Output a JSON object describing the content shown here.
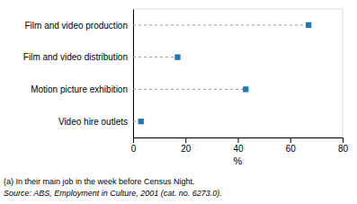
{
  "chart_data": {
    "type": "dot",
    "orientation": "horizontal",
    "categories": [
      "Film and video production",
      "Film and video distribution",
      "Motion picture exhibition",
      "Video hire outlets"
    ],
    "values": [
      67.0,
      17.0,
      43.0,
      3.0
    ],
    "xlim": [
      0,
      80
    ],
    "xticks": [
      0,
      20,
      40,
      60,
      80
    ],
    "xlabel": "%",
    "marker": "square",
    "grid": false,
    "annotations": [
      "(a) In their main job in the week before Census Night.",
      "Source: ABS, Employment in Culture, 2001 (cat. no. 6273.0)."
    ]
  }
}
